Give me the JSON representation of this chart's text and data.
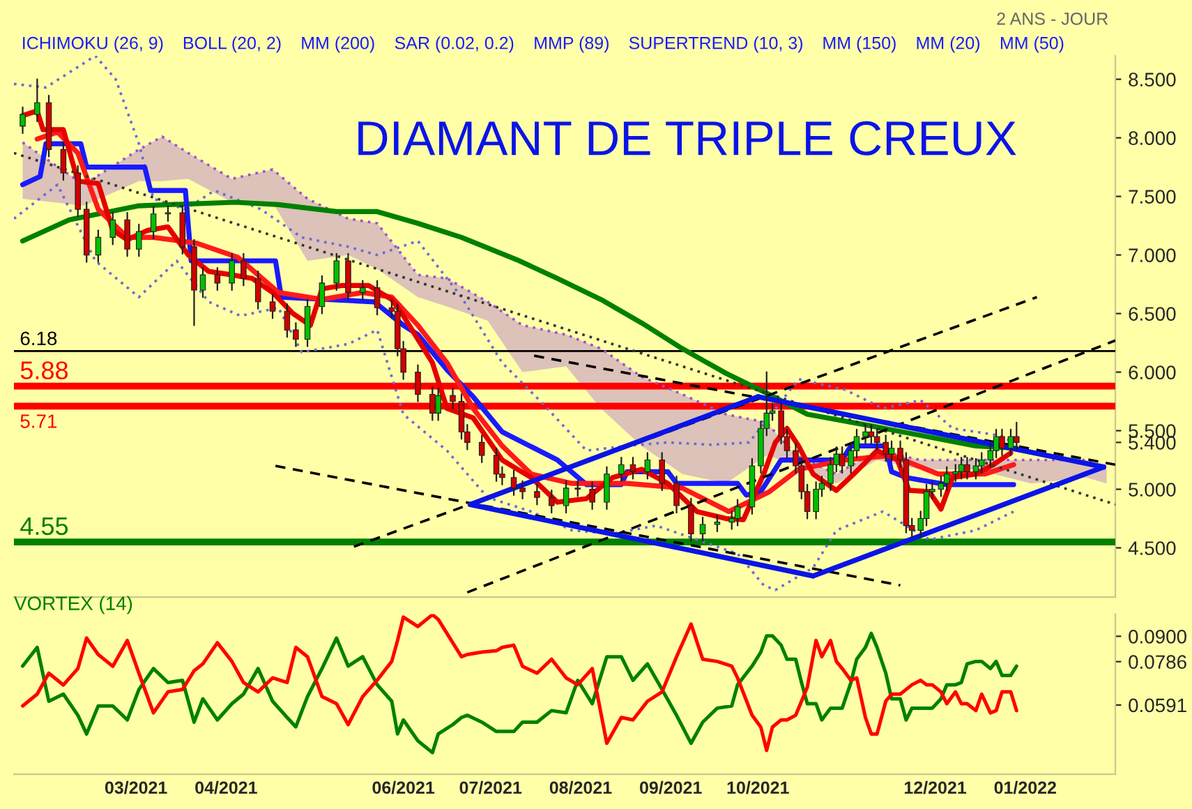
{
  "chart_data": [
    {
      "type": "candlestick",
      "title": "DIAMANT DE TRIPLE CREUX",
      "subtitle": "2 ANS - JOUR",
      "annotations": [
        "ICHIMOKU (26, 9)",
        "BOLL (20, 2)",
        "MM (200)",
        "SAR (0.02, 0.2)",
        "MMP (89)",
        "SUPERTREND (10, 3)",
        "MM (150)",
        "MM (20)",
        "MM (50)"
      ],
      "x": [
        "2021-01-21",
        "2021-01-26",
        "2021-01-30",
        "2021-02-04",
        "2021-02-09",
        "2021-02-12",
        "2021-02-16",
        "2021-02-21",
        "2021-02-26",
        "2021-03-02",
        "2021-03-07",
        "2021-03-12",
        "2021-03-17",
        "2021-03-21",
        "2021-03-24",
        "2021-03-29",
        "2021-04-03",
        "2021-04-07",
        "2021-04-12",
        "2021-04-17",
        "2021-04-22",
        "2021-04-25",
        "2021-04-29",
        "2021-05-04",
        "2021-05-09",
        "2021-05-13",
        "2021-05-18",
        "2021-05-23",
        "2021-05-28",
        "2021-05-30",
        "2021-06-01",
        "2021-06-06",
        "2021-06-11",
        "2021-06-13",
        "2021-06-18",
        "2021-06-21",
        "2021-06-23",
        "2021-06-28",
        "2021-07-03",
        "2021-07-05",
        "2021-07-09",
        "2021-07-12",
        "2021-07-17",
        "2021-07-22",
        "2021-07-27",
        "2021-07-31",
        "2021-08-05",
        "2021-08-10",
        "2021-08-15",
        "2021-08-19",
        "2021-08-24",
        "2021-08-29",
        "2021-09-03",
        "2021-09-08",
        "2021-09-12",
        "2021-09-17",
        "2021-09-22",
        "2021-09-24",
        "2021-09-29",
        "2021-10-02",
        "2021-10-04",
        "2021-10-06",
        "2021-10-09",
        "2021-10-11",
        "2021-10-14",
        "2021-10-16",
        "2021-10-18",
        "2021-10-21",
        "2021-10-23",
        "2021-10-26",
        "2021-10-28",
        "2021-10-30",
        "2021-11-02",
        "2021-11-04",
        "2021-11-07",
        "2021-11-09",
        "2021-11-11",
        "2021-11-14",
        "2021-11-16",
        "2021-11-19",
        "2021-11-21",
        "2021-11-23",
        "2021-11-26",
        "2021-11-28",
        "2021-11-30",
        "2021-12-03",
        "2021-12-05",
        "2021-12-08",
        "2021-12-10",
        "2021-12-12",
        "2021-12-15",
        "2021-12-17",
        "2021-12-20",
        "2021-12-22",
        "2021-12-24",
        "2021-12-27",
        "2021-12-29"
      ],
      "ohlc": [
        [
          8.1,
          8.26,
          8.04,
          8.2
        ],
        [
          8.2,
          8.5,
          8.14,
          8.3
        ],
        [
          8.3,
          8.36,
          7.84,
          7.9
        ],
        [
          7.9,
          7.96,
          7.64,
          7.7
        ],
        [
          7.7,
          7.76,
          7.33,
          7.39
        ],
        [
          7.39,
          7.45,
          6.94,
          7.0
        ],
        [
          7.0,
          7.21,
          6.94,
          7.15
        ],
        [
          7.15,
          7.36,
          7.09,
          7.3
        ],
        [
          7.3,
          7.36,
          6.99,
          7.05
        ],
        [
          7.05,
          7.26,
          6.99,
          7.2
        ],
        [
          7.2,
          7.41,
          7.14,
          7.35
        ],
        [
          7.35,
          7.42,
          7.29,
          7.36
        ],
        [
          7.36,
          7.42,
          7.01,
          7.07
        ],
        [
          7.07,
          7.13,
          6.4,
          6.7
        ],
        [
          6.7,
          6.89,
          6.64,
          6.83
        ],
        [
          6.83,
          6.89,
          6.7,
          6.76
        ],
        [
          6.76,
          7.01,
          6.7,
          6.95
        ],
        [
          6.95,
          7.01,
          6.74,
          6.8
        ],
        [
          6.8,
          6.86,
          6.54,
          6.6
        ],
        [
          6.6,
          6.66,
          6.46,
          6.52
        ],
        [
          6.52,
          6.58,
          6.3,
          6.36
        ],
        [
          6.36,
          6.42,
          6.22,
          6.28
        ],
        [
          6.28,
          6.62,
          6.22,
          6.56
        ],
        [
          6.56,
          6.82,
          6.5,
          6.76
        ],
        [
          6.76,
          7.01,
          6.7,
          6.95
        ],
        [
          6.95,
          7.01,
          6.62,
          6.68
        ],
        [
          6.68,
          6.78,
          6.62,
          6.72
        ],
        [
          6.72,
          6.78,
          6.49,
          6.55
        ],
        [
          6.55,
          6.61,
          6.46,
          6.52
        ],
        [
          6.52,
          6.58,
          6.14,
          6.2
        ],
        [
          6.2,
          6.26,
          5.94,
          6.0
        ],
        [
          6.0,
          6.06,
          5.75,
          5.81
        ],
        [
          5.81,
          5.87,
          5.59,
          5.65
        ],
        [
          5.65,
          5.86,
          5.59,
          5.8
        ],
        [
          5.8,
          5.86,
          5.69,
          5.75
        ],
        [
          5.75,
          5.81,
          5.43,
          5.49
        ],
        [
          5.49,
          5.55,
          5.34,
          5.4
        ],
        [
          5.4,
          5.46,
          5.23,
          5.29
        ],
        [
          5.29,
          5.35,
          5.07,
          5.13
        ],
        [
          5.13,
          5.19,
          5.04,
          5.1
        ],
        [
          5.1,
          5.16,
          4.95,
          5.01
        ],
        [
          5.01,
          5.07,
          4.92,
          4.98
        ],
        [
          4.98,
          5.04,
          4.87,
          4.93
        ],
        [
          4.93,
          4.99,
          4.8,
          4.86
        ],
        [
          4.86,
          5.07,
          4.8,
          5.01
        ],
        [
          5.01,
          5.07,
          4.94,
          5.0
        ],
        [
          5.0,
          5.06,
          4.83,
          4.89
        ],
        [
          4.89,
          5.19,
          4.83,
          5.13
        ],
        [
          5.13,
          5.27,
          5.07,
          5.21
        ],
        [
          5.21,
          5.27,
          5.09,
          5.15
        ],
        [
          5.15,
          5.31,
          5.09,
          5.25
        ],
        [
          5.25,
          5.31,
          4.99,
          5.05
        ],
        [
          5.05,
          5.11,
          4.8,
          4.86
        ],
        [
          4.86,
          4.92,
          4.56,
          4.62
        ],
        [
          4.62,
          4.76,
          4.56,
          4.7
        ],
        [
          4.7,
          4.78,
          4.64,
          4.72
        ],
        [
          4.72,
          4.81,
          4.66,
          4.75
        ],
        [
          4.75,
          4.91,
          4.69,
          4.85
        ],
        [
          4.85,
          5.26,
          4.79,
          5.2
        ],
        [
          5.2,
          5.58,
          5.14,
          5.52
        ],
        [
          5.52,
          6.0,
          5.46,
          5.65
        ],
        [
          5.65,
          5.73,
          5.59,
          5.67
        ],
        [
          5.67,
          5.73,
          5.39,
          5.45
        ],
        [
          5.45,
          5.51,
          5.27,
          5.33
        ],
        [
          5.33,
          5.39,
          5.14,
          5.2
        ],
        [
          5.2,
          5.26,
          4.92,
          4.98
        ],
        [
          4.98,
          5.04,
          4.75,
          4.81
        ],
        [
          4.81,
          5.06,
          4.75,
          5.0
        ],
        [
          5.0,
          5.11,
          4.94,
          5.05
        ],
        [
          5.05,
          5.27,
          4.99,
          5.21
        ],
        [
          5.21,
          5.36,
          5.15,
          5.3
        ],
        [
          5.3,
          5.36,
          5.14,
          5.2
        ],
        [
          5.2,
          5.39,
          5.14,
          5.33
        ],
        [
          5.33,
          5.51,
          5.27,
          5.45
        ],
        [
          5.45,
          5.55,
          5.39,
          5.49
        ],
        [
          5.49,
          5.55,
          5.39,
          5.45
        ],
        [
          5.45,
          5.51,
          5.34,
          5.4
        ],
        [
          5.4,
          5.46,
          5.24,
          5.3
        ],
        [
          5.3,
          5.41,
          5.24,
          5.35
        ],
        [
          5.35,
          5.41,
          5.19,
          5.25
        ],
        [
          5.25,
          5.31,
          4.63,
          4.69
        ],
        [
          4.69,
          4.75,
          4.59,
          4.65
        ],
        [
          4.65,
          4.81,
          4.59,
          4.75
        ],
        [
          4.75,
          5.04,
          4.69,
          4.98
        ],
        [
          4.98,
          5.06,
          4.92,
          5.0
        ],
        [
          5.0,
          5.11,
          4.94,
          5.05
        ],
        [
          5.05,
          5.19,
          4.99,
          5.13
        ],
        [
          5.13,
          5.21,
          5.07,
          5.15
        ],
        [
          5.15,
          5.27,
          5.09,
          5.21
        ],
        [
          5.21,
          5.27,
          5.09,
          5.15
        ],
        [
          5.15,
          5.26,
          5.09,
          5.2
        ],
        [
          5.2,
          5.31,
          5.14,
          5.25
        ],
        [
          5.25,
          5.39,
          5.19,
          5.33
        ],
        [
          5.33,
          5.51,
          5.27,
          5.45
        ],
        [
          5.45,
          5.51,
          5.29,
          5.35
        ],
        [
          5.35,
          5.51,
          5.29,
          5.45
        ],
        [
          5.45,
          5.57,
          5.34,
          5.4
        ]
      ],
      "series": [
        {
          "type": "line",
          "line_style": "dotted",
          "color": "#9b4fd8",
          "upper": [
            7.96,
            7.6,
            7.9,
            8.01,
            7.87,
            7.65,
            7.73,
            7.48,
            7.31,
            7.27,
            6.83,
            6.8,
            6.6,
            6.4,
            6.32,
            6.2,
            5.96,
            5.81,
            5.64,
            5.57,
            5.29,
            5.13,
            5.33,
            5.25,
            5.25,
            5.25,
            5.25,
            5.17
          ],
          "x": [
            "2021-01-21",
            "2021-02-11",
            "2021-03-02",
            "2021-03-10",
            "2021-03-19",
            "2021-04-03",
            "2021-04-17",
            "2021-04-29",
            "2021-05-13",
            "2021-05-23",
            "2021-06-06",
            "2021-06-16",
            "2021-06-30",
            "2021-07-12",
            "2021-07-27",
            "2021-08-08",
            "2021-08-22",
            "2021-09-05",
            "2021-09-20",
            "2021-10-04",
            "2021-10-14",
            "2021-10-28",
            "2021-11-11",
            "2021-11-26",
            "2021-12-15",
            "2022-01-03",
            "2022-01-22",
            "2022-01-29"
          ],
          "values": [
            7.96,
            7.6,
            7.9,
            8.01,
            7.87,
            7.65,
            7.73,
            7.48,
            7.31,
            7.27,
            6.83,
            6.8,
            6.6,
            6.4,
            6.32,
            6.2,
            5.96,
            5.81,
            5.64,
            5.57,
            5.29,
            5.13,
            5.33,
            5.25,
            5.25,
            5.25,
            5.25,
            5.17
          ],
          "lower": [
            7.48,
            7.42,
            7.63,
            7.63,
            7.65,
            7.45,
            7.45,
            6.95,
            7.0,
            6.88,
            6.64,
            6.56,
            6.44,
            6.0,
            6.05,
            5.69,
            5.37,
            5.13,
            5.05,
            5.29,
            5.21,
            5.05,
            5.25,
            5.17,
            5.17,
            5.05,
            5.1,
            5.05
          ]
        },
        {
          "type": "line",
          "line_style": "dotted",
          "color": "#6a6ad8",
          "x": [
            "2021-01-18",
            "2021-01-29",
            "2021-02-15",
            "2021-02-22",
            "2021-03-02",
            "2021-03-07",
            "2021-03-18",
            "2021-03-28",
            "2021-04-13",
            "2021-04-27",
            "2021-05-13",
            "2021-05-23",
            "2021-06-06",
            "2021-06-21",
            "2021-07-05",
            "2021-07-19",
            "2021-08-03",
            "2021-08-17",
            "2021-08-31",
            "2021-09-15",
            "2021-09-28",
            "2021-10-15",
            "2021-10-31",
            "2021-11-13",
            "2021-11-26",
            "2021-12-07",
            "2021-12-23",
            "2021-12-28"
          ],
          "values": [
            8.46,
            8.43,
            8.7,
            8.5,
            7.95,
            7.48,
            7.39,
            7.55,
            7.39,
            7.15,
            7.07,
            7.0,
            7.12,
            6.64,
            6.08,
            5.73,
            5.33,
            5.37,
            5.4,
            5.38,
            5.4,
            5.94,
            5.85,
            5.69,
            5.76,
            5.52,
            5.46,
            5.4
          ]
        },
        {
          "type": "line",
          "line_style": "dotted",
          "color": "#6a6ad8",
          "x": [
            "2021-01-18",
            "2021-02-02",
            "2021-02-15",
            "2021-03-02",
            "2021-03-15",
            "2021-03-26",
            "2021-04-06",
            "2021-04-19",
            "2021-04-27",
            "2021-05-13",
            "2021-05-23",
            "2021-06-01",
            "2021-06-16",
            "2021-06-30",
            "2021-07-15",
            "2021-07-29",
            "2021-08-12",
            "2021-08-27",
            "2021-09-10",
            "2021-09-24",
            "2021-10-03",
            "2021-10-07",
            "2021-10-20",
            "2021-10-28",
            "2021-11-13",
            "2021-11-29",
            "2021-12-15",
            "2021-12-28"
          ],
          "values": [
            7.31,
            7.6,
            6.95,
            6.64,
            6.95,
            6.6,
            6.48,
            6.55,
            6.17,
            6.24,
            6.36,
            5.64,
            5.33,
            4.93,
            4.81,
            4.65,
            4.62,
            4.69,
            4.57,
            4.45,
            4.18,
            4.14,
            4.33,
            4.65,
            4.81,
            4.57,
            4.65,
            4.81
          ]
        },
        {
          "type": "line",
          "line_style": "solid",
          "color": "#008000",
          "x": [
            "2021-01-21",
            "2021-02-06",
            "2021-03-02",
            "2021-04-04",
            "2021-04-19",
            "2021-05-09",
            "2021-05-23",
            "2021-06-06",
            "2021-06-21",
            "2021-07-10",
            "2021-07-24",
            "2021-08-08",
            "2021-08-22",
            "2021-09-05",
            "2021-09-20",
            "2021-10-04",
            "2021-10-18",
            "2021-11-07",
            "2021-11-26",
            "2021-12-15",
            "2021-12-29"
          ],
          "values": [
            7.12,
            7.3,
            7.42,
            7.45,
            7.43,
            7.37,
            7.37,
            7.27,
            7.15,
            6.96,
            6.8,
            6.62,
            6.42,
            6.2,
            5.99,
            5.82,
            5.64,
            5.55,
            5.46,
            5.37,
            5.35
          ]
        },
        {
          "type": "line",
          "line_style": "solid",
          "color": "#1a1aff",
          "x": [
            "2021-01-21",
            "2021-01-27",
            "2021-01-29",
            "2021-02-10",
            "2021-02-12",
            "2021-03-04",
            "2021-03-06",
            "2021-03-18",
            "2021-03-20",
            "2021-04-18",
            "2021-04-20",
            "2021-05-22",
            "2021-06-01",
            "2021-06-06",
            "2021-06-16",
            "2021-06-25",
            "2021-07-05",
            "2021-07-24",
            "2021-08-03",
            "2021-08-15",
            "2021-08-17",
            "2021-08-31",
            "2021-09-03",
            "2021-09-24",
            "2021-09-27",
            "2021-10-02",
            "2021-10-09",
            "2021-10-30",
            "2021-11-02",
            "2021-11-14",
            "2021-11-16",
            "2021-11-21",
            "2021-12-05",
            "2021-12-28"
          ],
          "values": [
            7.6,
            7.67,
            7.95,
            7.95,
            7.75,
            7.75,
            7.55,
            7.55,
            6.95,
            6.95,
            6.64,
            6.6,
            6.4,
            6.32,
            6.02,
            5.79,
            5.49,
            5.25,
            5.04,
            5.04,
            5.15,
            5.15,
            5.05,
            5.05,
            4.95,
            4.98,
            5.25,
            5.25,
            5.37,
            5.37,
            5.15,
            5.1,
            5.04,
            5.04
          ]
        },
        {
          "type": "line",
          "line_style": "solid",
          "color": "#ff1a1a",
          "x": [
            "2021-01-26",
            "2021-02-02",
            "2021-02-09",
            "2021-02-16",
            "2021-02-26",
            "2021-03-07",
            "2021-03-22",
            "2021-04-05",
            "2021-04-19",
            "2021-05-04",
            "2021-05-18",
            "2021-05-28",
            "2021-06-06",
            "2021-06-16",
            "2021-06-25",
            "2021-07-05",
            "2021-07-15",
            "2021-07-29",
            "2021-08-17",
            "2021-09-05",
            "2021-09-21",
            "2021-10-05",
            "2021-10-15",
            "2021-10-31",
            "2021-11-16",
            "2021-12-02",
            "2021-12-18",
            "2021-12-28"
          ],
          "values": [
            7.99,
            8.05,
            7.87,
            7.39,
            7.15,
            7.15,
            7.1,
            6.98,
            6.68,
            6.62,
            6.68,
            6.64,
            6.4,
            6.08,
            5.69,
            5.37,
            5.13,
            5.05,
            5.05,
            5.01,
            4.81,
            4.98,
            5.17,
            5.25,
            5.29,
            5.13,
            5.13,
            5.21
          ]
        },
        {
          "type": "line",
          "line_style": "solid",
          "color": "#e60000",
          "x": [
            "2021-01-21",
            "2021-01-26",
            "2021-01-28",
            "2021-02-04",
            "2021-02-09",
            "2021-02-16",
            "2021-02-21",
            "2021-02-26",
            "2021-03-05",
            "2021-03-12",
            "2021-03-19",
            "2021-03-26",
            "2021-04-03",
            "2021-04-10",
            "2021-04-17",
            "2021-04-24",
            "2021-04-30",
            "2021-05-04",
            "2021-05-11",
            "2021-05-20",
            "2021-05-28",
            "2021-06-01",
            "2021-06-11",
            "2021-06-16",
            "2021-06-25",
            "2021-07-05",
            "2021-07-15",
            "2021-07-24",
            "2021-08-03",
            "2021-08-12",
            "2021-08-22",
            "2021-08-31",
            "2021-09-10",
            "2021-09-20",
            "2021-09-26",
            "2021-10-03",
            "2021-10-07",
            "2021-10-11",
            "2021-10-15",
            "2021-10-20",
            "2021-10-28",
            "2021-11-03",
            "2021-11-11",
            "2021-11-18",
            "2021-11-22",
            "2021-11-29",
            "2021-12-03",
            "2021-12-07",
            "2021-12-15",
            "2021-12-21",
            "2021-12-27"
          ],
          "values": [
            8.19,
            8.23,
            8.07,
            8.07,
            7.63,
            7.61,
            7.21,
            7.13,
            7.21,
            7.24,
            7.0,
            6.86,
            6.83,
            6.8,
            6.68,
            6.5,
            6.4,
            6.71,
            6.74,
            6.74,
            6.62,
            6.48,
            6.08,
            5.69,
            5.61,
            5.25,
            5.1,
            4.89,
            4.92,
            5.1,
            5.17,
            5.05,
            4.81,
            4.75,
            4.74,
            5.13,
            5.4,
            5.52,
            5.37,
            5.13,
            4.99,
            5.13,
            5.33,
            5.25,
            4.99,
            4.98,
            4.83,
            5.1,
            5.13,
            5.21,
            5.31
          ]
        },
        {
          "type": "line",
          "line_style": "dotted",
          "color": "#333333",
          "x": [
            "2021-01-18",
            "2022-02-01"
          ],
          "values": [
            7.87,
            4.87
          ]
        },
        {
          "type": "line",
          "line_style": "dashed",
          "color": "#000000",
          "x": [
            "2021-04-18",
            "2021-11-19"
          ],
          "values": [
            5.2,
            4.18
          ]
        },
        {
          "type": "line",
          "line_style": "dashed",
          "color": "#000000",
          "x": [
            "2021-05-15",
            "2022-01-05"
          ],
          "values": [
            4.51,
            6.64
          ]
        },
        {
          "type": "line",
          "line_style": "dashed",
          "color": "#000000",
          "x": [
            "2021-06-23",
            "2022-02-01"
          ],
          "values": [
            4.12,
            6.27
          ]
        },
        {
          "type": "line",
          "line_style": "dashed",
          "color": "#000000",
          "x": [
            "2021-07-16",
            "2022-02-01"
          ],
          "values": [
            6.14,
            5.21
          ]
        },
        {
          "type": "line",
          "line_style": "solid",
          "color": "#0a14e6",
          "x": [
            "2021-06-24",
            "2021-10-01"
          ],
          "values": [
            4.87,
            5.79
          ]
        },
        {
          "type": "line",
          "line_style": "solid",
          "color": "#0a14e6",
          "x": [
            "2021-10-01",
            "2022-01-28"
          ],
          "values": [
            5.79,
            5.19
          ]
        },
        {
          "type": "line",
          "line_style": "solid",
          "color": "#0a14e6",
          "x": [
            "2021-06-24",
            "2021-10-20"
          ],
          "values": [
            4.87,
            4.26
          ]
        },
        {
          "type": "line",
          "line_style": "solid",
          "color": "#0a14e6",
          "x": [
            "2021-10-20",
            "2022-01-28"
          ],
          "values": [
            4.26,
            5.19
          ]
        }
      ],
      "ref_lines": [
        {
          "axis": "y",
          "value": 6.18,
          "label": "6.18",
          "color": "#000000"
        },
        {
          "axis": "y",
          "value": 5.88,
          "label": "5.88",
          "color": "#ff0000"
        },
        {
          "axis": "y",
          "value": 5.71,
          "label": "5.71",
          "color": "#ff0000"
        },
        {
          "axis": "y",
          "value": 4.55,
          "label": "4.55",
          "color": "#008000"
        }
      ],
      "xlim": [
        "2021-01-18",
        "2022-02-01"
      ],
      "ylim": [
        4.08,
        8.7
      ],
      "yticks": [
        {
          "value": 4.5,
          "label": "4.500"
        },
        {
          "value": 5.0,
          "label": "5.000"
        },
        {
          "value": 5.4,
          "label": "5.400"
        },
        {
          "value": 5.5,
          "label": "5.500"
        },
        {
          "value": 6.0,
          "label": "6.000"
        },
        {
          "value": 6.5,
          "label": "6.500"
        },
        {
          "value": 7.0,
          "label": "7.000"
        },
        {
          "value": 7.5,
          "label": "7.500"
        },
        {
          "value": 8.0,
          "label": "8.000"
        },
        {
          "value": 8.5,
          "label": "8.500"
        }
      ],
      "tick_labels": "y",
      "grid": false,
      "legend": false
    },
    {
      "type": "line",
      "title": "VORTEX (14)",
      "x": [
        "2021-01-21",
        "2021-01-26",
        "2021-01-30",
        "2021-02-04",
        "2021-02-09",
        "2021-02-12",
        "2021-02-16",
        "2021-02-21",
        "2021-02-26",
        "2021-03-02",
        "2021-03-07",
        "2021-03-12",
        "2021-03-17",
        "2021-03-21",
        "2021-03-24",
        "2021-03-29",
        "2021-04-03",
        "2021-04-07",
        "2021-04-12",
        "2021-04-17",
        "2021-04-22",
        "2021-04-25",
        "2021-04-29",
        "2021-05-04",
        "2021-05-09",
        "2021-05-13",
        "2021-05-18",
        "2021-05-23",
        "2021-05-28",
        "2021-05-30",
        "2021-06-01",
        "2021-06-06",
        "2021-06-11",
        "2021-06-13",
        "2021-06-18",
        "2021-06-21",
        "2021-06-23",
        "2021-06-28",
        "2021-07-03",
        "2021-07-05",
        "2021-07-09",
        "2021-07-12",
        "2021-07-17",
        "2021-07-22",
        "2021-07-27",
        "2021-07-31",
        "2021-08-05",
        "2021-08-10",
        "2021-08-15",
        "2021-08-19",
        "2021-08-24",
        "2021-08-29",
        "2021-09-03",
        "2021-09-08",
        "2021-09-12",
        "2021-09-17",
        "2021-09-22",
        "2021-09-24",
        "2021-09-29",
        "2021-10-02",
        "2021-10-04",
        "2021-10-06",
        "2021-10-09",
        "2021-10-11",
        "2021-10-14",
        "2021-10-16",
        "2021-10-18",
        "2021-10-21",
        "2021-10-23",
        "2021-10-26",
        "2021-10-28",
        "2021-10-30",
        "2021-11-02",
        "2021-11-04",
        "2021-11-07",
        "2021-11-09",
        "2021-11-11",
        "2021-11-14",
        "2021-11-16",
        "2021-11-19",
        "2021-11-21",
        "2021-11-23",
        "2021-11-26",
        "2021-11-28",
        "2021-11-30",
        "2021-12-03",
        "2021-12-05",
        "2021-12-08",
        "2021-12-10",
        "2021-12-12",
        "2021-12-15",
        "2021-12-17",
        "2021-12-20",
        "2021-12-22",
        "2021-12-24",
        "2021-12-27",
        "2021-12-29"
      ],
      "series": [
        {
          "color": "#008000",
          "values": [
            0.0766,
            0.085,
            0.0608,
            0.064,
            0.0545,
            0.0461,
            0.0587,
            0.0587,
            0.0524,
            0.0661,
            0.0755,
            0.0692,
            0.0702,
            0.0514,
            0.0619,
            0.0524,
            0.0597,
            0.064,
            0.0755,
            0.0608,
            0.0535,
            0.0493,
            0.0629,
            0.0755,
            0.0892,
            0.0766,
            0.0808,
            0.0682,
            0.0608,
            0.0461,
            0.0524,
            0.043,
            0.0377,
            0.0461,
            0.0503,
            0.0535,
            0.0545,
            0.0514,
            0.0472,
            0.0472,
            0.0472,
            0.0514,
            0.0514,
            0.0566,
            0.0556,
            0.0702,
            0.0597,
            0.0808,
            0.0808,
            0.0702,
            0.0776,
            0.0661,
            0.0545,
            0.0419,
            0.0514,
            0.0577,
            0.0587,
            0.0682,
            0.0766,
            0.0829,
            0.0902,
            0.0902,
            0.086,
            0.0797,
            0.0797,
            0.0692,
            0.0597,
            0.0597,
            0.0524,
            0.0577,
            0.0577,
            0.0577,
            0.0692,
            0.0797,
            0.085,
            0.0913,
            0.085,
            0.0734,
            0.0619,
            0.0619,
            0.0524,
            0.0577,
            0.0577,
            0.0577,
            0.0577,
            0.0619,
            0.0682,
            0.0682,
            0.0692,
            0.0776,
            0.0787,
            0.0787,
            0.0755,
            0.0787,
            0.0724,
            0.0724,
            0.0766
          ]
        },
        {
          "color": "#ff0000",
          "values": [
            0.0587,
            0.064,
            0.0734,
            0.0681,
            0.0755,
            0.0892,
            0.0818,
            0.0765,
            0.0881,
            0.0734,
            0.0556,
            0.065,
            0.0661,
            0.0745,
            0.0776,
            0.0871,
            0.0787,
            0.0692,
            0.065,
            0.0713,
            0.0692,
            0.085,
            0.0808,
            0.0629,
            0.0597,
            0.0503,
            0.0629,
            0.0703,
            0.0787,
            0.0881,
            0.0986,
            0.0944,
            0.0997,
            0.0976,
            0.0871,
            0.0808,
            0.0818,
            0.0829,
            0.0835,
            0.085,
            0.086,
            0.0765,
            0.0734,
            0.0797,
            0.0713,
            0.0682,
            0.0755,
            0.0419,
            0.0535,
            0.0524,
            0.0608,
            0.065,
            0.0808,
            0.0955,
            0.0797,
            0.0787,
            0.0766,
            0.0713,
            0.0545,
            0.0492,
            0.0387,
            0.0492,
            0.0524,
            0.0524,
            0.0545,
            0.0608,
            0.0671,
            0.0881,
            0.0808,
            0.0881,
            0.0787,
            0.0755,
            0.0702,
            0.0713,
            0.0535,
            0.0461,
            0.0461,
            0.0608,
            0.064,
            0.064,
            0.0661,
            0.0682,
            0.0702,
            0.0682,
            0.0682,
            0.065,
            0.0597,
            0.065,
            0.0597,
            0.0597,
            0.0566,
            0.064,
            0.0556,
            0.0566,
            0.065,
            0.065,
            0.0566
          ]
        }
      ],
      "xlim": [
        "2021-01-18",
        "2022-02-01"
      ],
      "xticks": [
        {
          "value": "2021-03-01",
          "label": "03/2021"
        },
        {
          "value": "2021-04-01",
          "label": "04/2021"
        },
        {
          "value": "2021-06-01",
          "label": "06/2021"
        },
        {
          "value": "2021-07-01",
          "label": "07/2021"
        },
        {
          "value": "2021-08-01",
          "label": "08/2021"
        },
        {
          "value": "2021-09-01",
          "label": "09/2021"
        },
        {
          "value": "2021-10-01",
          "label": "10/2021"
        },
        {
          "value": "2021-12-01",
          "label": "12/2021"
        },
        {
          "value": "2022-01-01",
          "label": "01/2022"
        }
      ],
      "ylim": [
        0.028,
        0.1
      ],
      "yticks": [
        {
          "value": 0.0591,
          "label": "0.0591"
        },
        {
          "value": 0.0786,
          "label": "0.0786"
        },
        {
          "value": 0.09,
          "label": "0.0900"
        }
      ],
      "grid": false,
      "legend": false
    }
  ]
}
